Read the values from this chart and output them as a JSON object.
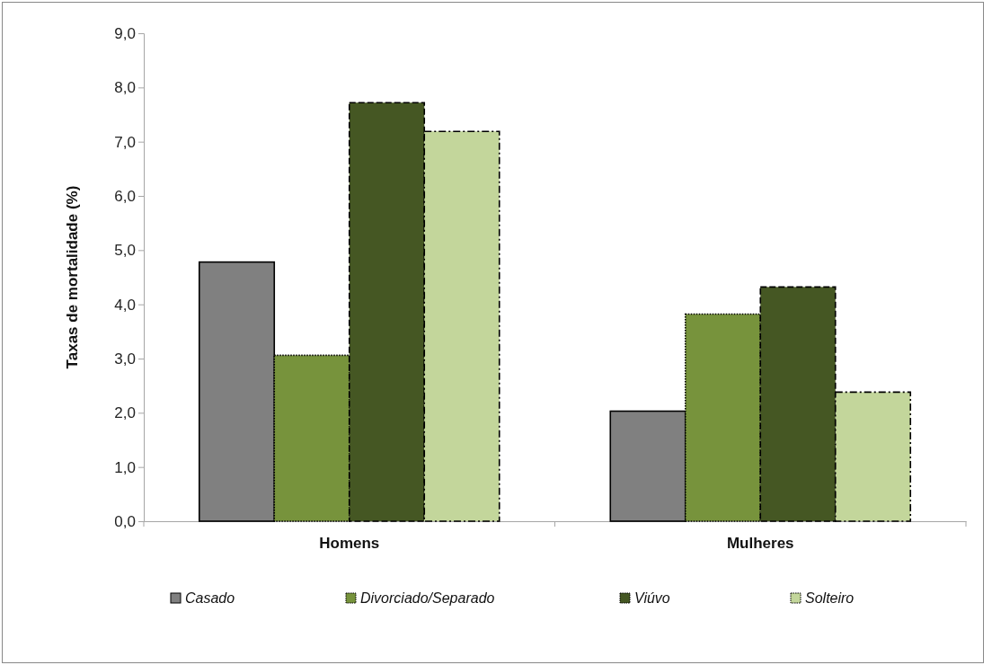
{
  "chart_data": {
    "type": "bar",
    "ylabel": "Taxas de mortalidade (%)",
    "categories": [
      "Homens",
      "Mulheres"
    ],
    "series": [
      {
        "name": "Casado",
        "color": "#808080",
        "line_style": "solid",
        "values": [
          4.78,
          2.03
        ]
      },
      {
        "name": "Divorciado/Separado",
        "color": "#77933c",
        "line_style": "dotted",
        "values": [
          3.06,
          3.82
        ]
      },
      {
        "name": "Viúvo",
        "color": "#455723",
        "line_style": "dashed",
        "values": [
          7.72,
          4.32
        ]
      },
      {
        "name": "Solteiro",
        "color": "#c3d69b",
        "line_style": "dashdot",
        "values": [
          7.19,
          2.38
        ]
      }
    ],
    "ylim": [
      0,
      9
    ],
    "yticks": [
      {
        "value": 0,
        "label": "0,0"
      },
      {
        "value": 1,
        "label": "1,0"
      },
      {
        "value": 2,
        "label": "2,0"
      },
      {
        "value": 3,
        "label": "3,0"
      },
      {
        "value": 4,
        "label": "4,0"
      },
      {
        "value": 5,
        "label": "5,0"
      },
      {
        "value": 6,
        "label": "6,0"
      },
      {
        "value": 7,
        "label": "7,0"
      },
      {
        "value": 8,
        "label": "8,0"
      },
      {
        "value": 9,
        "label": "9,0"
      }
    ],
    "grid": false,
    "legend": "bottom"
  }
}
